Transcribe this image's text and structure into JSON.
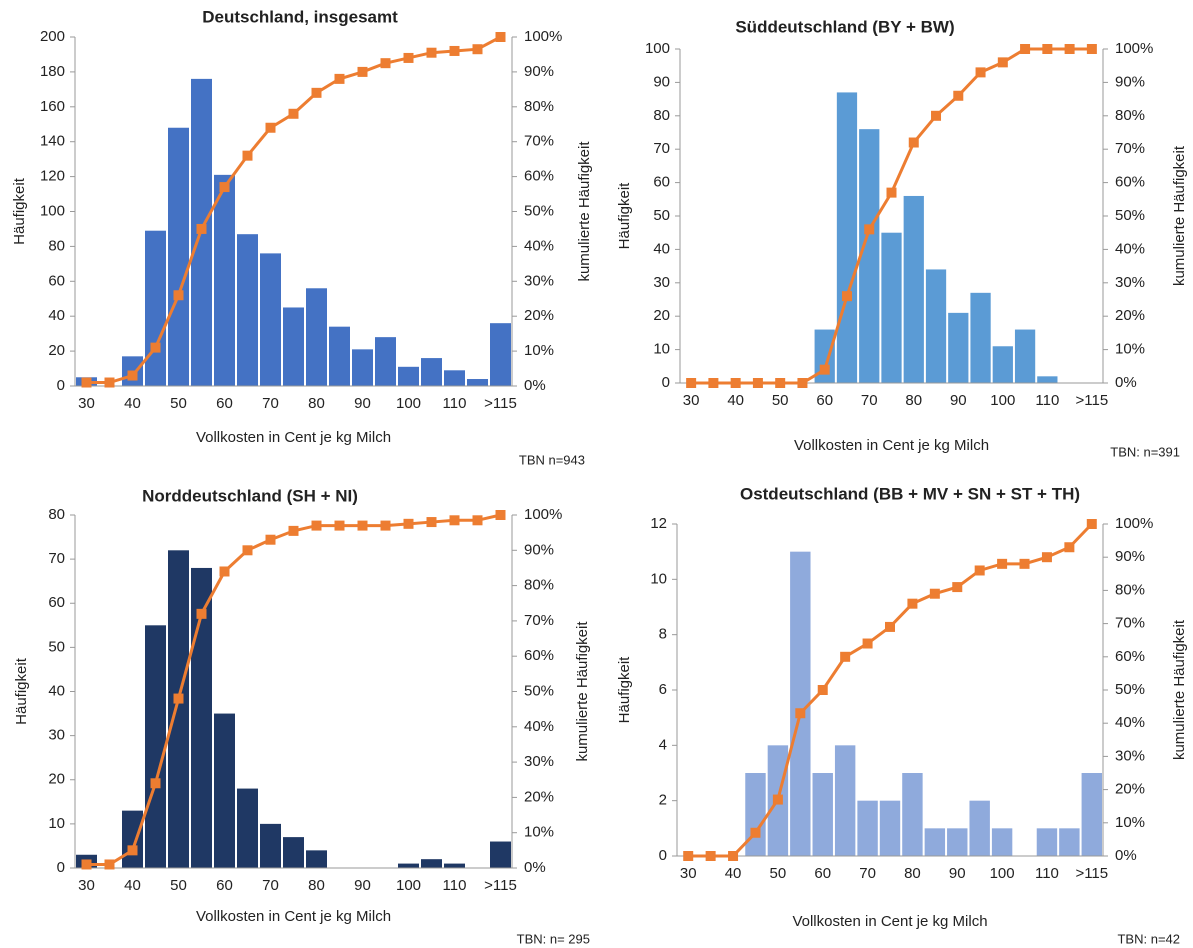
{
  "chart_data": [
    {
      "type": "bar",
      "title": "Deutschland, insgesamt",
      "xlabel": "Vollkosten in Cent je kg Milch",
      "ylabel": "Häufigkeit",
      "y2label": "kumulierte Häufigkeit",
      "note": "TBN  n=943",
      "categories": [
        "30",
        null,
        "40",
        null,
        "50",
        null,
        "60",
        null,
        "70",
        null,
        "80",
        null,
        "90",
        null,
        "100",
        null,
        "110",
        null,
        ">115"
      ],
      "series": [
        {
          "type": "bar",
          "color": "#4472c4",
          "values": [
            5,
            0,
            17,
            89,
            148,
            176,
            121,
            87,
            76,
            45,
            56,
            34,
            21,
            28,
            11,
            16,
            9,
            4,
            36
          ]
        },
        {
          "type": "line",
          "axis": "y2",
          "color": "#ed7d31",
          "values": [
            1,
            1,
            3,
            11,
            26,
            45,
            57,
            66,
            74,
            78,
            84,
            88,
            90,
            92.5,
            94,
            95.5,
            96,
            96.5,
            100
          ]
        }
      ],
      "ylim": [
        0,
        200
      ],
      "yticks": [
        0,
        20,
        40,
        60,
        80,
        100,
        120,
        140,
        160,
        180,
        200
      ],
      "y2lim": [
        0,
        100
      ],
      "y2ticks": [
        {
          "value": 0,
          "label": "0%"
        },
        {
          "value": 10,
          "label": "10%"
        },
        {
          "value": 20,
          "label": "20%"
        },
        {
          "value": 30,
          "label": "30%"
        },
        {
          "value": 40,
          "label": "40%"
        },
        {
          "value": 50,
          "label": "50%"
        },
        {
          "value": 60,
          "label": "60%"
        },
        {
          "value": 70,
          "label": "70%"
        },
        {
          "value": 80,
          "label": "80%"
        },
        {
          "value": 90,
          "label": "90%"
        },
        {
          "value": 100,
          "label": "100%"
        }
      ]
    },
    {
      "type": "bar",
      "title": "Süddeutschland (BY + BW)",
      "xlabel": "Vollkosten in Cent je kg Milch",
      "ylabel": "Häufigkeit",
      "y2label": "kumulierte Häufigkeit",
      "note": "TBN: n=391",
      "categories": [
        "30",
        null,
        "40",
        null,
        "50",
        null,
        "60",
        null,
        "70",
        null,
        "80",
        null,
        "90",
        null,
        "100",
        null,
        "110",
        null,
        ">115"
      ],
      "series": [
        {
          "type": "bar",
          "color": "#5b9bd5",
          "values": [
            0,
            0,
            0,
            0,
            0,
            0,
            16,
            87,
            76,
            45,
            56,
            34,
            21,
            27,
            11,
            16,
            2,
            0,
            0
          ]
        },
        {
          "type": "line",
          "axis": "y2",
          "color": "#ed7d31",
          "values": [
            0,
            0,
            0,
            0,
            0,
            0,
            4,
            26,
            46,
            57,
            72,
            80,
            86,
            93,
            96,
            100,
            100,
            100,
            100
          ]
        }
      ],
      "ylim": [
        0,
        100
      ],
      "yticks": [
        0,
        10,
        20,
        30,
        40,
        50,
        60,
        70,
        80,
        90,
        100
      ],
      "y2lim": [
        0,
        100
      ],
      "y2ticks": [
        {
          "value": 0,
          "label": "0%"
        },
        {
          "value": 10,
          "label": "10%"
        },
        {
          "value": 20,
          "label": "20%"
        },
        {
          "value": 30,
          "label": "30%"
        },
        {
          "value": 40,
          "label": "40%"
        },
        {
          "value": 50,
          "label": "50%"
        },
        {
          "value": 60,
          "label": "60%"
        },
        {
          "value": 70,
          "label": "70%"
        },
        {
          "value": 80,
          "label": "80%"
        },
        {
          "value": 90,
          "label": "90%"
        },
        {
          "value": 100,
          "label": "100%"
        }
      ]
    },
    {
      "type": "bar",
      "title": "Norddeutschland (SH + NI)",
      "xlabel": "Vollkosten in Cent je kg Milch",
      "ylabel": "Häufigkeit",
      "y2label": "kumulierte Häufigkeit",
      "note": "TBN: n= 295",
      "categories": [
        "30",
        null,
        "40",
        null,
        "50",
        null,
        "60",
        null,
        "70",
        null,
        "80",
        null,
        "90",
        null,
        "100",
        null,
        "110",
        null,
        ">115"
      ],
      "series": [
        {
          "type": "bar",
          "color": "#1f3864",
          "values": [
            3,
            0,
            13,
            55,
            72,
            68,
            35,
            18,
            10,
            7,
            4,
            0,
            0,
            0,
            1,
            2,
            1,
            0,
            6
          ]
        },
        {
          "type": "line",
          "axis": "y2",
          "color": "#ed7d31",
          "values": [
            1,
            1,
            5,
            24,
            48,
            72,
            84,
            90,
            93,
            95.5,
            97,
            97,
            97,
            97,
            97.5,
            98,
            98.5,
            98.5,
            100
          ]
        }
      ],
      "ylim": [
        0,
        80
      ],
      "yticks": [
        0,
        10,
        20,
        30,
        40,
        50,
        60,
        70,
        80
      ],
      "y2lim": [
        0,
        100
      ],
      "y2ticks": [
        {
          "value": 0,
          "label": "0%"
        },
        {
          "value": 10,
          "label": "10%"
        },
        {
          "value": 20,
          "label": "20%"
        },
        {
          "value": 30,
          "label": "30%"
        },
        {
          "value": 40,
          "label": "40%"
        },
        {
          "value": 50,
          "label": "50%"
        },
        {
          "value": 60,
          "label": "60%"
        },
        {
          "value": 70,
          "label": "70%"
        },
        {
          "value": 80,
          "label": "80%"
        },
        {
          "value": 90,
          "label": "90%"
        },
        {
          "value": 100,
          "label": "100%"
        }
      ]
    },
    {
      "type": "bar",
      "title": "Ostdeutschland (BB + MV + SN + ST + TH)",
      "xlabel": "Vollkosten in Cent je kg Milch",
      "ylabel": "Häufigkeit",
      "y2label": "kumulierte Häufigkeit",
      "note": "TBN: n=42",
      "categories": [
        "30",
        null,
        "40",
        null,
        "50",
        null,
        "60",
        null,
        "70",
        null,
        "80",
        null,
        "90",
        null,
        "100",
        null,
        "110",
        null,
        ">115"
      ],
      "series": [
        {
          "type": "bar",
          "color": "#8faadc",
          "values": [
            0,
            0,
            0,
            3,
            4,
            11,
            3,
            4,
            2,
            2,
            3,
            1,
            1,
            2,
            1,
            0,
            1,
            1,
            3
          ]
        },
        {
          "type": "line",
          "axis": "y2",
          "color": "#ed7d31",
          "values": [
            0,
            0,
            0,
            7,
            17,
            43,
            50,
            60,
            64,
            69,
            76,
            79,
            81,
            86,
            88,
            88,
            90,
            93,
            100
          ]
        }
      ],
      "ylim": [
        0,
        12
      ],
      "yticks": [
        0,
        2,
        4,
        6,
        8,
        10,
        12
      ],
      "y2lim": [
        0,
        100
      ],
      "y2ticks": [
        {
          "value": 0,
          "label": "0%"
        },
        {
          "value": 10,
          "label": "10%"
        },
        {
          "value": 20,
          "label": "20%"
        },
        {
          "value": 30,
          "label": "30%"
        },
        {
          "value": 40,
          "label": "40%"
        },
        {
          "value": 50,
          "label": "50%"
        },
        {
          "value": 60,
          "label": "60%"
        },
        {
          "value": 70,
          "label": "70%"
        },
        {
          "value": 80,
          "label": "80%"
        },
        {
          "value": 90,
          "label": "90%"
        },
        {
          "value": 100,
          "label": "100%"
        }
      ]
    }
  ]
}
